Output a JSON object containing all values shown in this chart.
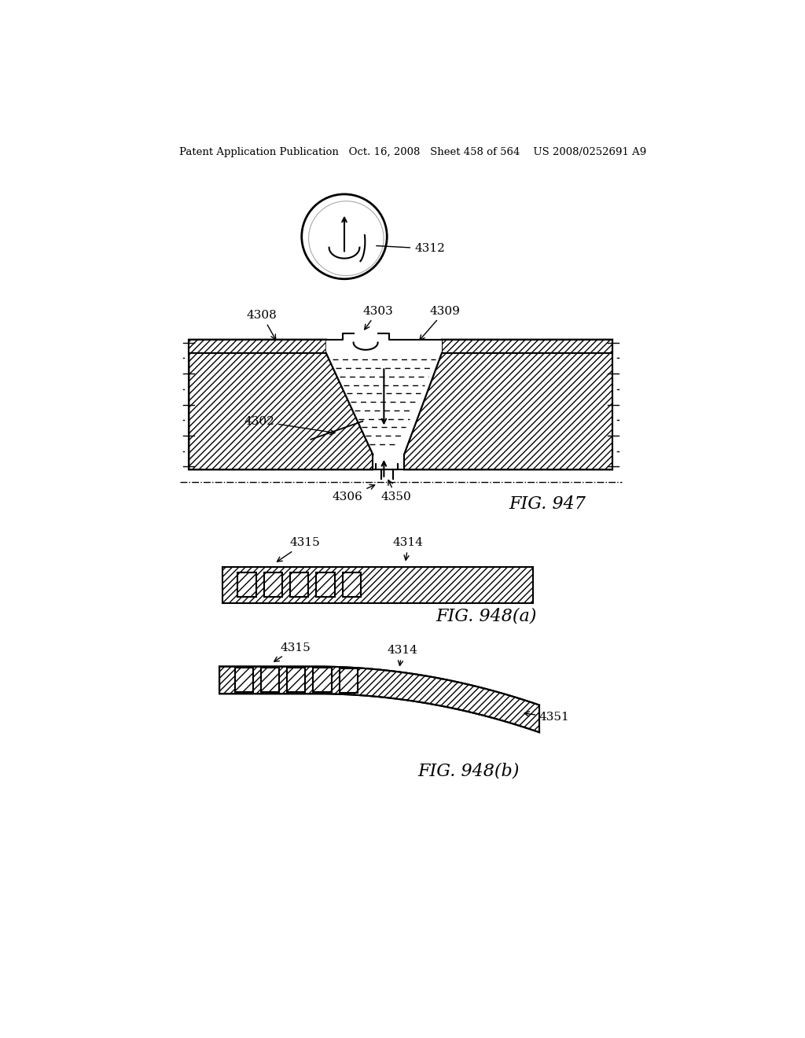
{
  "header_text": "Patent Application Publication   Oct. 16, 2008   Sheet 458 of 564    US 2008/0252691 A9",
  "bg_color": "#ffffff",
  "line_color": "#000000",
  "fig947_label": "FIG. 947",
  "fig948a_label": "FIG. 948(a)",
  "fig948b_label": "FIG. 948(b)"
}
